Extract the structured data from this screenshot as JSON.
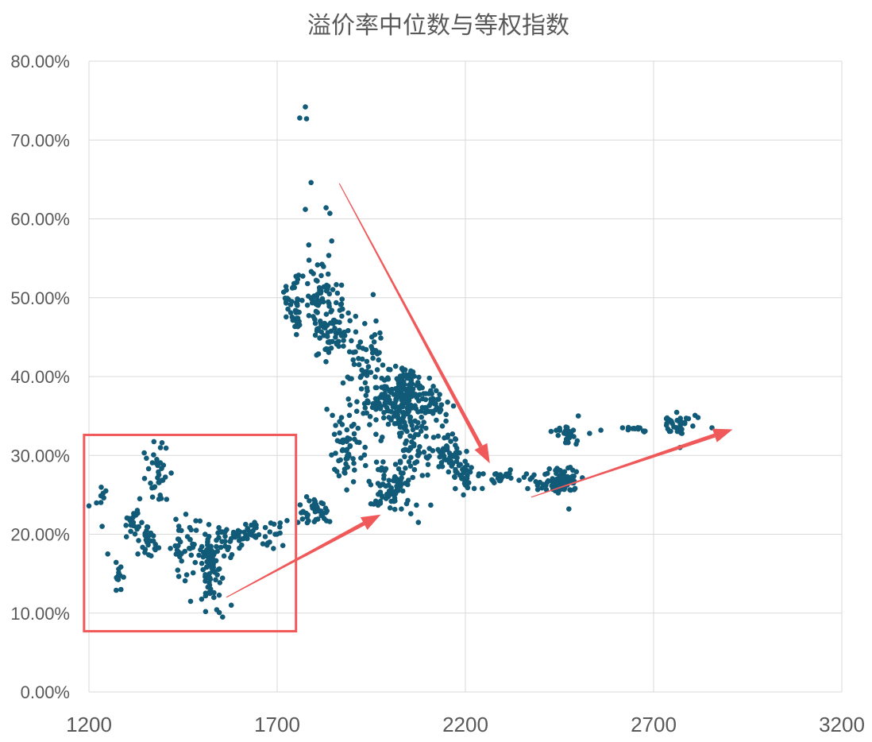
{
  "chart_data": {
    "type": "scatter",
    "title": "溢价率中位数与等权指数",
    "xlabel": "",
    "ylabel": "",
    "xlim": [
      1200,
      3200
    ],
    "ylim": [
      0,
      0.8
    ],
    "x_ticks": [
      1200,
      1700,
      2200,
      2700,
      3200
    ],
    "x_tick_labels": [
      "1200",
      "1700",
      "2200",
      "2700",
      "3200"
    ],
    "y_ticks": [
      0,
      0.1,
      0.2,
      0.3,
      0.4,
      0.5,
      0.6,
      0.7,
      0.8
    ],
    "y_tick_labels": [
      "0.00%",
      "10.00%",
      "20.00%",
      "30.00%",
      "40.00%",
      "50.00%",
      "60.00%",
      "70.00%",
      "80.00%"
    ],
    "grid": "both",
    "marker_color": "#115a78",
    "annotation_color": "#f0595a",
    "series": [
      {
        "clusters": [
          {
            "cx": 1230,
            "cy": 0.245,
            "sx": 25,
            "sy": 0.015,
            "n": 6
          },
          {
            "cx": 1280,
            "cy": 0.145,
            "sx": 15,
            "sy": 0.015,
            "n": 14
          },
          {
            "cx": 1315,
            "cy": 0.215,
            "sx": 25,
            "sy": 0.018,
            "n": 20
          },
          {
            "cx": 1380,
            "cy": 0.28,
            "sx": 25,
            "sy": 0.03,
            "n": 34
          },
          {
            "cx": 1360,
            "cy": 0.19,
            "sx": 25,
            "sy": 0.018,
            "n": 28
          },
          {
            "cx": 1460,
            "cy": 0.19,
            "sx": 45,
            "sy": 0.03,
            "n": 45
          },
          {
            "cx": 1525,
            "cy": 0.16,
            "sx": 25,
            "sy": 0.04,
            "n": 75
          },
          {
            "cx": 1575,
            "cy": 0.195,
            "sx": 40,
            "sy": 0.02,
            "n": 32
          },
          {
            "cx": 1640,
            "cy": 0.2,
            "sx": 35,
            "sy": 0.015,
            "n": 24
          },
          {
            "cx": 1700,
            "cy": 0.205,
            "sx": 25,
            "sy": 0.018,
            "n": 10
          },
          {
            "cx": 1745,
            "cy": 0.49,
            "sx": 20,
            "sy": 0.03,
            "n": 45
          },
          {
            "cx": 1810,
            "cy": 0.5,
            "sx": 30,
            "sy": 0.045,
            "n": 60
          },
          {
            "cx": 1830,
            "cy": 0.445,
            "sx": 30,
            "sy": 0.03,
            "n": 30
          },
          {
            "cx": 1860,
            "cy": 0.465,
            "sx": 40,
            "sy": 0.04,
            "n": 40
          },
          {
            "cx": 1800,
            "cy": 0.23,
            "sx": 40,
            "sy": 0.015,
            "n": 40
          },
          {
            "cx": 1890,
            "cy": 0.31,
            "sx": 40,
            "sy": 0.05,
            "n": 60
          },
          {
            "cx": 1930,
            "cy": 0.42,
            "sx": 40,
            "sy": 0.04,
            "n": 45
          },
          {
            "cx": 1980,
            "cy": 0.37,
            "sx": 40,
            "sy": 0.035,
            "n": 70
          },
          {
            "cx": 2040,
            "cy": 0.375,
            "sx": 45,
            "sy": 0.035,
            "n": 160
          },
          {
            "cx": 2000,
            "cy": 0.26,
            "sx": 45,
            "sy": 0.025,
            "n": 70
          },
          {
            "cx": 2060,
            "cy": 0.31,
            "sx": 40,
            "sy": 0.035,
            "n": 50
          },
          {
            "cx": 2120,
            "cy": 0.36,
            "sx": 35,
            "sy": 0.02,
            "n": 35
          },
          {
            "cx": 2160,
            "cy": 0.3,
            "sx": 45,
            "sy": 0.02,
            "n": 65
          },
          {
            "cx": 2200,
            "cy": 0.27,
            "sx": 35,
            "sy": 0.012,
            "n": 25
          },
          {
            "cx": 2310,
            "cy": 0.275,
            "sx": 40,
            "sy": 0.007,
            "n": 20
          },
          {
            "cx": 2390,
            "cy": 0.27,
            "sx": 30,
            "sy": 0.012,
            "n": 18
          },
          {
            "cx": 2460,
            "cy": 0.27,
            "sx": 35,
            "sy": 0.015,
            "n": 70
          },
          {
            "cx": 2470,
            "cy": 0.325,
            "sx": 30,
            "sy": 0.012,
            "n": 25
          },
          {
            "cx": 2650,
            "cy": 0.333,
            "sx": 40,
            "sy": 0.005,
            "n": 12
          },
          {
            "cx": 2760,
            "cy": 0.338,
            "sx": 40,
            "sy": 0.012,
            "n": 35
          }
        ],
        "points": [
          [
            1200,
            0.236
          ],
          [
            1245,
            0.255
          ],
          [
            1335,
            0.245
          ],
          [
            1235,
            0.21
          ],
          [
            1250,
            0.175
          ],
          [
            1285,
            0.13
          ],
          [
            1330,
            0.175
          ],
          [
            1485,
            0.205
          ],
          [
            1640,
            0.215
          ],
          [
            1755,
            0.215
          ],
          [
            1690,
            0.182
          ],
          [
            1760,
            0.728
          ],
          [
            1775,
            0.742
          ],
          [
            1778,
            0.727
          ],
          [
            1790,
            0.646
          ],
          [
            1775,
            0.612
          ],
          [
            1830,
            0.614
          ],
          [
            1840,
            0.607
          ],
          [
            1845,
            0.572
          ],
          [
            1955,
            0.504
          ],
          [
            2075,
            0.215
          ],
          [
            2030,
            0.232
          ],
          [
            2070,
            0.237
          ],
          [
            2108,
            0.237
          ],
          [
            2055,
            0.226
          ],
          [
            2195,
            0.25
          ],
          [
            2245,
            0.258
          ],
          [
            2295,
            0.27
          ],
          [
            2475,
            0.232
          ],
          [
            2500,
            0.35
          ],
          [
            2530,
            0.328
          ],
          [
            2560,
            0.332
          ],
          [
            2770,
            0.31
          ],
          [
            2818,
            0.348
          ],
          [
            2855,
            0.335
          ],
          [
            1578,
            0.11
          ],
          [
            1555,
            0.095
          ],
          [
            1510,
            0.102
          ],
          [
            1470,
            0.115
          ],
          [
            1680,
            0.19
          ]
        ]
      }
    ],
    "annotations": [
      {
        "type": "rect",
        "x0": 1187,
        "x1": 1750,
        "y0": 0.077,
        "y1": 0.326
      },
      {
        "type": "arrow",
        "from": [
          1865,
          0.645
        ],
        "to": [
          2265,
          0.29
        ],
        "weight": "thin-to-thick"
      },
      {
        "type": "arrow",
        "from": [
          1565,
          0.12
        ],
        "to": [
          1975,
          0.225
        ],
        "weight": "thin-to-thick"
      },
      {
        "type": "arrow",
        "from": [
          2375,
          0.247
        ],
        "to": [
          2910,
          0.333
        ],
        "weight": "thin-to-thick"
      }
    ]
  }
}
